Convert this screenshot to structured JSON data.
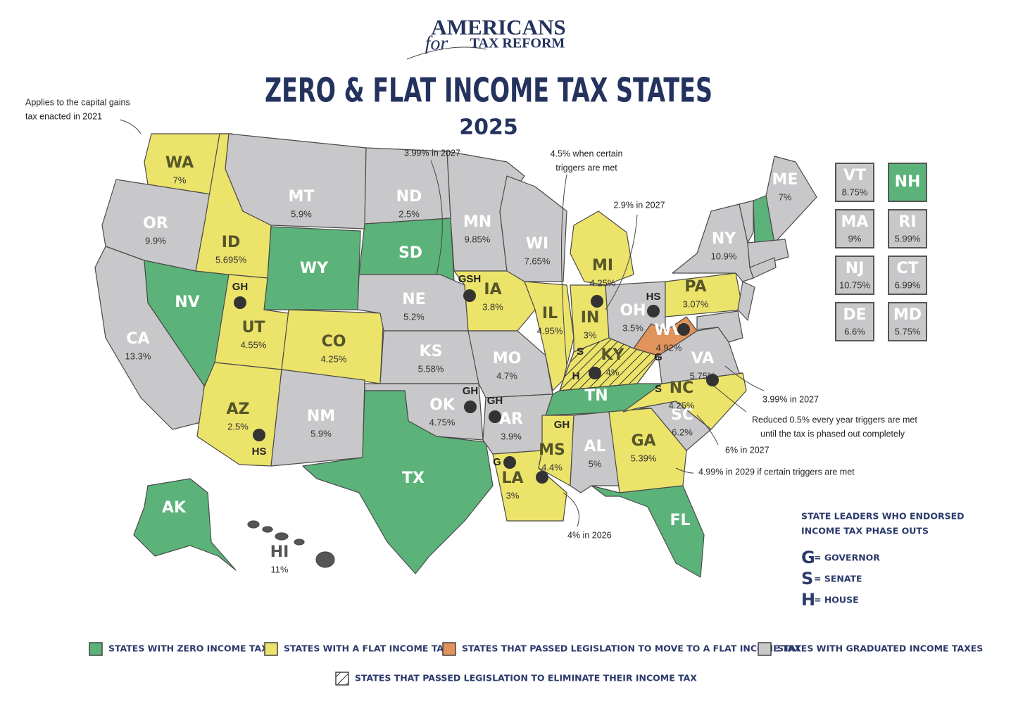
{
  "logo": {
    "line1": "AMERICANS",
    "script": "for",
    "line2": "TAX REFORM"
  },
  "title": "ZERO & FLAT INCOME TAX STATES",
  "subtitle": "2025",
  "colors": {
    "zero": "#5bb37a",
    "flat": "#ece36a",
    "moving": "#e0935a",
    "graduated": "#c8c8ca"
  },
  "states": [
    {
      "abbr": "WA",
      "rate": "7%",
      "category": "flat"
    },
    {
      "abbr": "OR",
      "rate": "9.9%",
      "category": "graduated"
    },
    {
      "abbr": "CA",
      "rate": "13.3%",
      "category": "graduated"
    },
    {
      "abbr": "NV",
      "category": "zero"
    },
    {
      "abbr": "ID",
      "rate": "5.695%",
      "category": "flat"
    },
    {
      "abbr": "MT",
      "rate": "5.9%",
      "category": "graduated"
    },
    {
      "abbr": "WY",
      "category": "zero"
    },
    {
      "abbr": "UT",
      "rate": "4.55%",
      "category": "flat"
    },
    {
      "abbr": "CO",
      "rate": "4.25%",
      "category": "flat"
    },
    {
      "abbr": "AZ",
      "rate": "2.5%",
      "category": "flat"
    },
    {
      "abbr": "NM",
      "rate": "5.9%",
      "category": "graduated"
    },
    {
      "abbr": "ND",
      "rate": "2.5%",
      "category": "graduated"
    },
    {
      "abbr": "SD",
      "category": "zero"
    },
    {
      "abbr": "NE",
      "rate": "5.2%",
      "category": "graduated"
    },
    {
      "abbr": "KS",
      "rate": "5.58%",
      "category": "graduated"
    },
    {
      "abbr": "OK",
      "rate": "4.75%",
      "category": "graduated"
    },
    {
      "abbr": "TX",
      "category": "zero"
    },
    {
      "abbr": "MN",
      "rate": "9.85%",
      "category": "graduated"
    },
    {
      "abbr": "IA",
      "rate": "3.8%",
      "category": "flat"
    },
    {
      "abbr": "MO",
      "rate": "4.7%",
      "category": "graduated"
    },
    {
      "abbr": "AR",
      "rate": "3.9%",
      "category": "graduated"
    },
    {
      "abbr": "LA",
      "rate": "3%",
      "category": "flat"
    },
    {
      "abbr": "WI",
      "rate": "7.65%",
      "category": "graduated"
    },
    {
      "abbr": "IL",
      "rate": "4.95%",
      "category": "flat"
    },
    {
      "abbr": "MI",
      "rate": "4.25%",
      "category": "flat"
    },
    {
      "abbr": "IN",
      "rate": "3%",
      "category": "flat"
    },
    {
      "abbr": "OH",
      "rate": "3.5%",
      "category": "graduated"
    },
    {
      "abbr": "KY",
      "rate": "4%",
      "category": "flat",
      "hatched": true
    },
    {
      "abbr": "TN",
      "category": "zero"
    },
    {
      "abbr": "MS",
      "rate": "4.4%",
      "category": "flat"
    },
    {
      "abbr": "AL",
      "rate": "5%",
      "category": "graduated"
    },
    {
      "abbr": "GA",
      "rate": "5.39%",
      "category": "flat"
    },
    {
      "abbr": "FL",
      "category": "zero"
    },
    {
      "abbr": "SC",
      "rate": "6.2%",
      "category": "graduated"
    },
    {
      "abbr": "NC",
      "rate": "4.25%",
      "category": "flat"
    },
    {
      "abbr": "VA",
      "rate": "5.75%",
      "category": "graduated"
    },
    {
      "abbr": "WV",
      "rate": "4.92%",
      "category": "moving"
    },
    {
      "abbr": "PA",
      "rate": "3.07%",
      "category": "flat"
    },
    {
      "abbr": "NY",
      "rate": "10.9%",
      "category": "graduated"
    },
    {
      "abbr": "ME",
      "rate": "7%",
      "category": "graduated"
    },
    {
      "abbr": "AK",
      "category": "zero"
    },
    {
      "abbr": "HI",
      "rate": "11%",
      "category": "graduated"
    }
  ],
  "inset_boxes": [
    {
      "abbr": "VT",
      "rate": "8.75%",
      "category": "graduated"
    },
    {
      "abbr": "NH",
      "category": "zero"
    },
    {
      "abbr": "MA",
      "rate": "9%",
      "category": "graduated"
    },
    {
      "abbr": "RI",
      "rate": "5.99%",
      "category": "graduated"
    },
    {
      "abbr": "NJ",
      "rate": "10.75%",
      "category": "graduated"
    },
    {
      "abbr": "CT",
      "rate": "6.99%",
      "category": "graduated"
    },
    {
      "abbr": "DE",
      "rate": "6.6%",
      "category": "graduated"
    },
    {
      "abbr": "MD",
      "rate": "5.75%",
      "category": "graduated"
    }
  ],
  "endorsements": [
    "GH",
    "HS",
    "GSH",
    "HS",
    "G",
    "S",
    "H",
    "S",
    "GH",
    "GH",
    "G",
    "GH"
  ],
  "annotations": [
    {
      "lines": [
        "Applies to the capital gains",
        "tax enacted  in 2021"
      ]
    },
    {
      "lines": [
        "3.99% in 2027"
      ]
    },
    {
      "lines": [
        "4.5% when certain",
        "triggers are met"
      ]
    },
    {
      "lines": [
        "2.9% in 2027"
      ]
    },
    {
      "lines": [
        "3.99% in 2027"
      ]
    },
    {
      "lines": [
        "Reduced 0.5% every year triggers are met",
        "until the tax is phased out completely"
      ]
    },
    {
      "lines": [
        "6% in 2027"
      ]
    },
    {
      "lines": [
        "4.99% in 2029 if certain triggers are met"
      ]
    },
    {
      "lines": [
        "4% in 2026"
      ]
    }
  ],
  "leaders_key": {
    "title": [
      "STATE LEADERS WHO ENDORSED",
      "INCOME TAX PHASE OUTS"
    ],
    "items": [
      {
        "letter": "G",
        "text": "= GOVERNOR"
      },
      {
        "letter": "S",
        "text": "= SENATE"
      },
      {
        "letter": "H",
        "text": "= HOUSE"
      }
    ]
  },
  "legend": [
    {
      "label": "STATES WITH ZERO INCOME TAX",
      "category": "zero"
    },
    {
      "label": "STATES WITH A FLAT INCOME TAX",
      "category": "flat"
    },
    {
      "label": "STATES THAT PASSED LEGISLATION TO MOVE TO A FLAT INCOME TAX",
      "category": "moving"
    },
    {
      "label": "STATES WITH GRADUATED INCOME TAXES",
      "category": "graduated"
    },
    {
      "label": "STATES THAT PASSED LEGISLATION TO ELIMINATE THEIR INCOME TAX",
      "hatched": true
    }
  ]
}
